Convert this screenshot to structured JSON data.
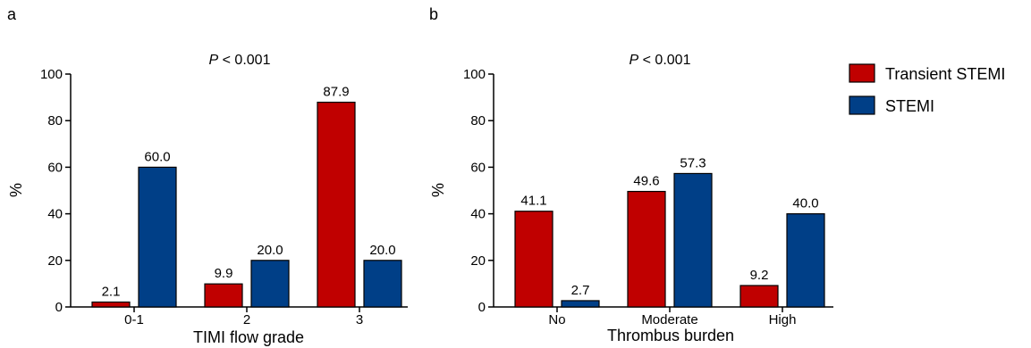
{
  "chart_data": [
    {
      "type": "bar",
      "panel_label": "a",
      "annotation_prefix": "P",
      "annotation_rest": " < 0.001",
      "xlabel": "TIMI flow grade",
      "ylabel": "%",
      "ylim": [
        0,
        100
      ],
      "yticks": [
        "0",
        "20",
        "40",
        "60",
        "80",
        "100"
      ],
      "categories": [
        "0-1",
        "2",
        "3"
      ],
      "series": [
        {
          "name": "Transient STEMI",
          "color": "#c00000",
          "values": [
            2.1,
            9.9,
            87.9
          ],
          "labels": [
            "2.1",
            "9.9",
            "87.9"
          ]
        },
        {
          "name": "STEMI",
          "color": "#003f87",
          "values": [
            60.0,
            20.0,
            20.0
          ],
          "labels": [
            "60.0",
            "20.0",
            "20.0"
          ]
        }
      ]
    },
    {
      "type": "bar",
      "panel_label": "b",
      "annotation_prefix": "P",
      "annotation_rest": " < 0.001",
      "xlabel": "Thrombus burden",
      "ylabel": "%",
      "ylim": [
        0,
        100
      ],
      "yticks": [
        "0",
        "20",
        "40",
        "60",
        "80",
        "100"
      ],
      "categories": [
        "No",
        "Moderate",
        "High"
      ],
      "series": [
        {
          "name": "Transient STEMI",
          "color": "#c00000",
          "values": [
            41.1,
            49.6,
            9.2
          ],
          "labels": [
            "41.1",
            "49.6",
            "9.2"
          ]
        },
        {
          "name": "STEMI",
          "color": "#003f87",
          "values": [
            2.7,
            57.3,
            40.0
          ],
          "labels": [
            "2.7",
            "57.3",
            "40.0"
          ]
        }
      ]
    }
  ],
  "legend": {
    "placement": "right",
    "items": [
      {
        "label": "Transient STEMI",
        "color": "#c00000"
      },
      {
        "label": "STEMI",
        "color": "#003f87"
      }
    ]
  }
}
